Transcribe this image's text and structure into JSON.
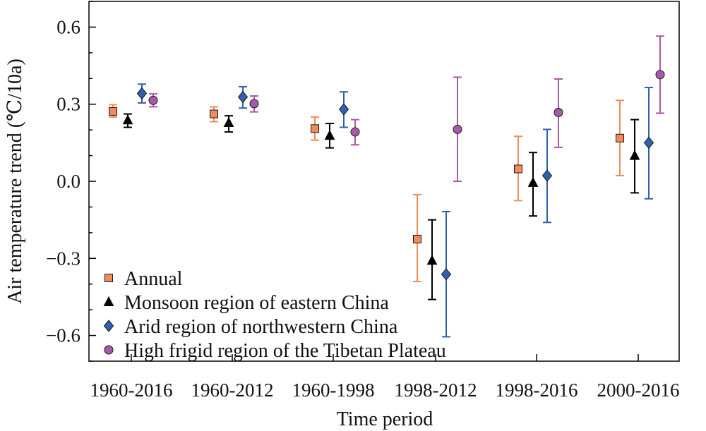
{
  "chart_data": {
    "type": "scatter",
    "xlabel": "Time period",
    "ylabel": "Air temperature trend (℃/10a)",
    "categories": [
      "1960-2016",
      "1960-2012",
      "1960-1998",
      "1998-2012",
      "1998-2016",
      "2000-2016"
    ],
    "ylim": [
      -0.7,
      0.7
    ],
    "yticks": [
      -0.6,
      -0.3,
      0.0,
      0.3,
      0.6
    ],
    "ytick_labels": [
      "−0.6",
      "−0.3",
      "0.0",
      "0.3",
      "0.6"
    ],
    "grid": false,
    "legend_position": "bottom-left",
    "series": [
      {
        "name": "Annual",
        "marker": "square",
        "color": "#F08C5A",
        "values": [
          0.272,
          0.262,
          0.205,
          -0.225,
          0.048,
          0.168
        ],
        "lower": [
          0.25,
          0.232,
          0.16,
          -0.39,
          -0.075,
          0.022
        ],
        "upper": [
          0.298,
          0.29,
          0.25,
          -0.052,
          0.175,
          0.315
        ]
      },
      {
        "name": "Monsoon region of eastern China",
        "marker": "triangle",
        "color": "#000000",
        "values": [
          0.238,
          0.228,
          0.178,
          -0.308,
          -0.005,
          0.1
        ],
        "lower": [
          0.21,
          0.192,
          0.13,
          -0.46,
          -0.135,
          -0.045
        ],
        "upper": [
          0.262,
          0.255,
          0.225,
          -0.15,
          0.112,
          0.24
        ]
      },
      {
        "name": "Arid region of northwestern China",
        "marker": "diamond",
        "color": "#3060B0",
        "values": [
          0.342,
          0.328,
          0.28,
          -0.362,
          0.022,
          0.15
        ],
        "lower": [
          0.305,
          0.285,
          0.21,
          -0.605,
          -0.16,
          -0.068
        ],
        "upper": [
          0.378,
          0.368,
          0.348,
          -0.118,
          0.202,
          0.365
        ]
      },
      {
        "name": "High frigid region of the Tibetan Plateau",
        "marker": "circle",
        "color": "#A65AA8",
        "values": [
          0.315,
          0.302,
          0.192,
          0.202,
          0.268,
          0.415
        ],
        "lower": [
          0.29,
          0.27,
          0.142,
          0.0,
          0.132,
          0.265
        ],
        "upper": [
          0.34,
          0.332,
          0.24,
          0.405,
          0.398,
          0.565
        ]
      }
    ]
  }
}
